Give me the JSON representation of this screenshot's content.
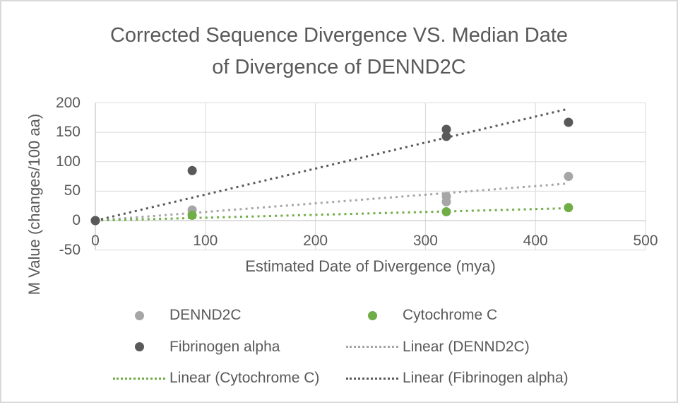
{
  "title_lines": [
    "Corrected Sequence Divergence VS. Median Date",
    "of Divergence of DENND2C"
  ],
  "chart_data": {
    "type": "scatter",
    "title": "Corrected Sequence Divergence VS. Median Date of Divergence of DENND2C",
    "xlabel": "Estimated Date of Divergence (mya)",
    "ylabel": "M Value (changes/100 aa)",
    "xlim": [
      0,
      500
    ],
    "ylim": [
      -50,
      200
    ],
    "x_ticks": [
      0,
      100,
      200,
      300,
      400,
      500
    ],
    "y_ticks": [
      -50,
      0,
      50,
      100,
      150,
      200
    ],
    "grid": true,
    "legend_position": "bottom",
    "series": [
      {
        "name": "DENND2C",
        "color": "#A6A6A6",
        "points": [
          [
            0,
            0
          ],
          [
            88,
            18
          ],
          [
            319,
            32
          ],
          [
            319,
            41
          ],
          [
            430,
            75
          ]
        ]
      },
      {
        "name": "Cytochrome C",
        "color": "#70AD47",
        "points": [
          [
            0,
            0
          ],
          [
            88,
            9
          ],
          [
            319,
            15
          ],
          [
            430,
            22
          ]
        ]
      },
      {
        "name": "Fibrinogen alpha",
        "color": "#595959",
        "points": [
          [
            0,
            0
          ],
          [
            88,
            85
          ],
          [
            319,
            143
          ],
          [
            319,
            155
          ],
          [
            430,
            167
          ]
        ]
      }
    ],
    "trendlines": [
      {
        "name": "Linear (DENND2C)",
        "color": "#A6A6A6",
        "from": [
          0,
          0
        ],
        "to": [
          430,
          63
        ]
      },
      {
        "name": "Linear (Cytochrome C)",
        "color": "#70AD47",
        "from": [
          0,
          0
        ],
        "to": [
          430,
          21
        ]
      },
      {
        "name": "Linear (Fibrinogen alpha)",
        "color": "#595959",
        "from": [
          0,
          0
        ],
        "to": [
          430,
          190
        ]
      }
    ],
    "legend": [
      {
        "label": "DENND2C",
        "marker": "dot",
        "color": "#A6A6A6"
      },
      {
        "label": "Cytochrome C",
        "marker": "dot",
        "color": "#70AD47"
      },
      {
        "label": "Fibrinogen alpha",
        "marker": "dot",
        "color": "#595959"
      },
      {
        "label": "Linear (DENND2C)",
        "marker": "dotted-line",
        "color": "#A6A6A6"
      },
      {
        "label": "Linear (Cytochrome C)",
        "marker": "dotted-line",
        "color": "#70AD47"
      },
      {
        "label": "Linear (Fibrinogen alpha)",
        "marker": "dotted-line",
        "color": "#595959"
      }
    ]
  },
  "colors": {
    "text": "#595959",
    "grid": "#D9D9D9",
    "axis": "#C9C9C9",
    "background": "#FFFFFF",
    "frame_border": "#D9D9D9"
  }
}
